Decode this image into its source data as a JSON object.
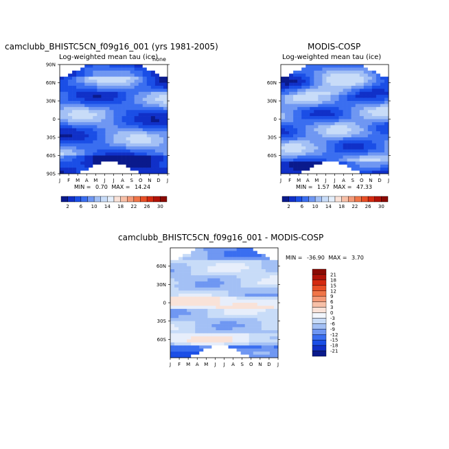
{
  "chart_data": [
    {
      "type": "heatmap",
      "title": "camclubb_BHISTC5CN_f09g16_001 (yrs 1981-2005)",
      "subtitle": "Log-weighted mean tau (ice)",
      "units": "none",
      "x_ticks": [
        "J",
        "F",
        "M",
        "A",
        "M",
        "J",
        "J",
        "A",
        "S",
        "O",
        "N",
        "D",
        "J"
      ],
      "y_ticks": [
        "90N",
        "60N",
        "30N",
        "0",
        "30S",
        "60S",
        "90S"
      ],
      "ylim": [
        -90,
        90
      ],
      "stats": {
        "min_label": "MIN =",
        "min": "0.70",
        "max_label": "MAX =",
        "max": "14.24"
      },
      "legend": {
        "labels": [
          "2",
          "6",
          "10",
          "14",
          "18",
          "22",
          "26",
          "30"
        ],
        "colors": [
          "#0a1a8c",
          "#1030c8",
          "#1a4ee6",
          "#3a6ef0",
          "#6f97f2",
          "#a3c0f5",
          "#c8dcf8",
          "#e4eefb",
          "#f9e2d8",
          "#f7c0a8",
          "#f49a78",
          "#f07548",
          "#e84f26",
          "#d42a10",
          "#b01208",
          "#8a0a04"
        ]
      }
    },
    {
      "type": "heatmap",
      "title": "MODIS-COSP",
      "subtitle": "Log-weighted mean tau (ice)",
      "x_ticks": [
        "J",
        "F",
        "M",
        "A",
        "M",
        "J",
        "J",
        "A",
        "S",
        "O",
        "N",
        "D",
        "J"
      ],
      "y_ticks": [
        "60N",
        "30N",
        "0",
        "30S",
        "60S"
      ],
      "ylim": [
        -90,
        90
      ],
      "stats": {
        "min_label": "MIN =",
        "min": "1.57",
        "max_label": "MAX =",
        "max": "47.33"
      },
      "legend": {
        "labels": [
          "2",
          "6",
          "10",
          "14",
          "18",
          "22",
          "26",
          "30"
        ],
        "colors": [
          "#0a1a8c",
          "#1030c8",
          "#1a4ee6",
          "#3a6ef0",
          "#6f97f2",
          "#a3c0f5",
          "#c8dcf8",
          "#e4eefb",
          "#f9e2d8",
          "#f7c0a8",
          "#f49a78",
          "#f07548",
          "#e84f26",
          "#d42a10",
          "#b01208",
          "#8a0a04"
        ]
      }
    },
    {
      "type": "heatmap",
      "title": "camclubb_BHISTC5CN_f09g16_001 - MODIS-COSP",
      "x_ticks": [
        "J",
        "F",
        "M",
        "A",
        "M",
        "J",
        "J",
        "A",
        "S",
        "O",
        "N",
        "D",
        "J"
      ],
      "y_ticks": [
        "60N",
        "30N",
        "0",
        "30S",
        "60S"
      ],
      "ylim": [
        -90,
        90
      ],
      "stats": {
        "min_label": "MIN =",
        "min": "-36.90",
        "max_label": "MAX =",
        "max": "3.70"
      },
      "legend": {
        "labels": [
          "21",
          "18",
          "15",
          "12",
          "9",
          "6",
          "3",
          "0",
          "-3",
          "-6",
          "-9",
          "-12",
          "-15",
          "-18",
          "-21"
        ],
        "colors": [
          "#8a0a04",
          "#b01208",
          "#d42a10",
          "#e84f26",
          "#f07548",
          "#f49a78",
          "#f7c0a8",
          "#f9e2d8",
          "#f2f6fd",
          "#c8dcf8",
          "#a3c0f5",
          "#6f97f2",
          "#3a6ef0",
          "#1a4ee6",
          "#1030c8",
          "#0a1a8c"
        ]
      }
    }
  ]
}
